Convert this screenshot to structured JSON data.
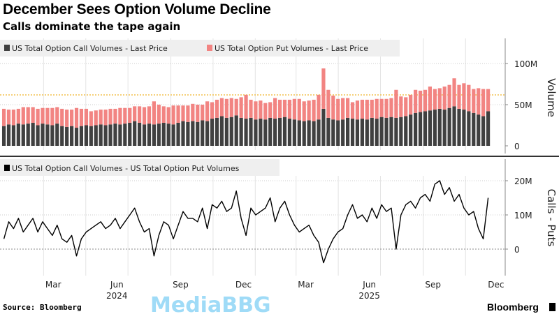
{
  "header": {
    "title": "December Sees Option Volume Decline",
    "subtitle": "Calls dominate the tape again"
  },
  "colors": {
    "calls": "#404040",
    "puts": "#f28482",
    "reference": "#f2c14e",
    "line": "#000000"
  },
  "x_ticks": {
    "months": [
      "Mar",
      "Jun",
      "Sep",
      "Dec",
      "Mar",
      "Jun",
      "Sep",
      "Dec"
    ],
    "month_dates": [
      "2024-03-15",
      "2024-06-15",
      "2024-09-15",
      "2024-12-15",
      "2025-03-15",
      "2025-06-15",
      "2025-09-15",
      "2025-12-15"
    ],
    "years": [
      "2024",
      "2025"
    ],
    "year_dates": [
      "2024-06-15",
      "2025-06-15"
    ]
  },
  "chart_data": [
    {
      "type": "bar",
      "stacked": true,
      "x": [
        "2024-01-01",
        "2024-01-08",
        "2024-01-15",
        "2024-01-22",
        "2024-01-29",
        "2024-02-05",
        "2024-02-12",
        "2024-02-19",
        "2024-02-26",
        "2024-03-04",
        "2024-03-11",
        "2024-03-18",
        "2024-03-25",
        "2024-04-01",
        "2024-04-08",
        "2024-04-15",
        "2024-04-22",
        "2024-04-29",
        "2024-05-06",
        "2024-05-13",
        "2024-05-20",
        "2024-05-27",
        "2024-06-03",
        "2024-06-10",
        "2024-06-17",
        "2024-06-24",
        "2024-07-01",
        "2024-07-08",
        "2024-07-15",
        "2024-07-22",
        "2024-07-29",
        "2024-08-05",
        "2024-08-12",
        "2024-08-19",
        "2024-08-26",
        "2024-09-02",
        "2024-09-09",
        "2024-09-16",
        "2024-09-23",
        "2024-09-30",
        "2024-10-07",
        "2024-10-14",
        "2024-10-21",
        "2024-10-28",
        "2024-11-04",
        "2024-11-11",
        "2024-11-18",
        "2024-11-25",
        "2024-12-02",
        "2024-12-09",
        "2024-12-16",
        "2024-12-23",
        "2024-12-30",
        "2025-01-06",
        "2025-01-13",
        "2025-01-20",
        "2025-01-27",
        "2025-02-03",
        "2025-02-10",
        "2025-02-17",
        "2025-02-24",
        "2025-03-03",
        "2025-03-10",
        "2025-03-17",
        "2025-03-24",
        "2025-03-31",
        "2025-04-07",
        "2025-04-14",
        "2025-04-21",
        "2025-04-28",
        "2025-05-05",
        "2025-05-12",
        "2025-05-19",
        "2025-05-26",
        "2025-06-02",
        "2025-06-09",
        "2025-06-16",
        "2025-06-23",
        "2025-06-30",
        "2025-07-07",
        "2025-07-14",
        "2025-07-21",
        "2025-07-28",
        "2025-08-04",
        "2025-08-11",
        "2025-08-18",
        "2025-08-25",
        "2025-09-01",
        "2025-09-08",
        "2025-09-15",
        "2025-09-22",
        "2025-09-29",
        "2025-10-06",
        "2025-10-13",
        "2025-10-20",
        "2025-10-27",
        "2025-11-03",
        "2025-11-10",
        "2025-11-17",
        "2025-11-24",
        "2025-12-01"
      ],
      "series": [
        {
          "name": "US Total Option Call Volumes - Last Price",
          "unit": "M",
          "values": [
            24,
            26,
            25,
            27,
            26,
            27,
            28,
            25,
            27,
            26,
            25,
            27,
            24,
            23,
            24,
            22,
            24,
            25,
            24,
            25,
            26,
            25,
            26,
            27,
            26,
            27,
            28,
            30,
            28,
            26,
            27,
            26,
            27,
            28,
            27,
            26,
            28,
            30,
            29,
            30,
            29,
            31,
            30,
            33,
            34,
            36,
            34,
            35,
            37,
            34,
            33,
            34,
            32,
            33,
            32,
            34,
            33,
            34,
            35,
            33,
            32,
            31,
            30,
            31,
            30,
            32,
            45,
            34,
            32,
            31,
            32,
            34,
            33,
            32,
            33,
            32,
            34,
            33,
            35,
            34,
            35,
            34,
            35,
            36,
            38,
            40,
            41,
            42,
            43,
            44,
            45,
            44,
            46,
            48,
            45,
            44,
            42,
            40,
            38,
            36,
            42
          ]
        },
        {
          "name": "US Total Option Put Volumes - Last Price",
          "unit": "M",
          "values": [
            21,
            18,
            19,
            18,
            21,
            20,
            19,
            20,
            19,
            20,
            21,
            20,
            21,
            21,
            20,
            24,
            21,
            20,
            18,
            18,
            18,
            19,
            19,
            18,
            20,
            19,
            18,
            18,
            20,
            21,
            21,
            28,
            23,
            20,
            20,
            23,
            21,
            19,
            20,
            21,
            21,
            19,
            24,
            20,
            22,
            22,
            23,
            23,
            20,
            25,
            29,
            22,
            22,
            22,
            20,
            19,
            25,
            22,
            21,
            23,
            25,
            26,
            24,
            24,
            26,
            30,
            49,
            34,
            29,
            26,
            26,
            24,
            20,
            23,
            23,
            24,
            22,
            24,
            22,
            23,
            23,
            34,
            25,
            23,
            24,
            28,
            26,
            26,
            29,
            25,
            25,
            28,
            28,
            34,
            29,
            32,
            32,
            29,
            32,
            33,
            27
          ]
        }
      ],
      "ylabel": "Volume",
      "yticks": [
        0,
        50,
        100
      ],
      "ytick_labels": [
        "0",
        "50M",
        "100M"
      ],
      "ylim": [
        0,
        130
      ],
      "reference_line": 60,
      "grid": true,
      "legend": "top-left"
    },
    {
      "type": "line",
      "series": [
        {
          "name": "US Total Option Call Volumes - US Total Option Put Volumes",
          "unit": "M",
          "values": [
            3,
            8,
            6,
            9,
            5,
            7,
            9,
            5,
            8,
            6,
            4,
            7,
            3,
            2,
            4,
            -2,
            3,
            5,
            6,
            7,
            8,
            6,
            7,
            9,
            6,
            8,
            10,
            12,
            8,
            5,
            6,
            -2,
            4,
            8,
            7,
            3,
            7,
            11,
            9,
            9,
            8,
            12,
            6,
            13,
            12,
            14,
            11,
            12,
            17,
            9,
            4,
            12,
            10,
            11,
            12,
            15,
            8,
            12,
            14,
            10,
            7,
            5,
            6,
            7,
            4,
            2,
            -4,
            0,
            3,
            5,
            6,
            10,
            13,
            9,
            10,
            8,
            12,
            9,
            13,
            11,
            12,
            0,
            10,
            13,
            14,
            12,
            15,
            16,
            14,
            19,
            20,
            16,
            18,
            14,
            16,
            12,
            10,
            11,
            6,
            3,
            15
          ]
        }
      ],
      "ylabel": "Calls - Puts",
      "yticks": [
        0,
        10,
        20
      ],
      "ytick_labels": [
        "0",
        "10M",
        "20M"
      ],
      "ylim": [
        -8,
        26
      ],
      "grid": true,
      "legend": "top-left"
    }
  ],
  "footer": {
    "source": "Source: Bloomberg",
    "brand": "Bloomberg",
    "watermark": "MediaBBG"
  }
}
